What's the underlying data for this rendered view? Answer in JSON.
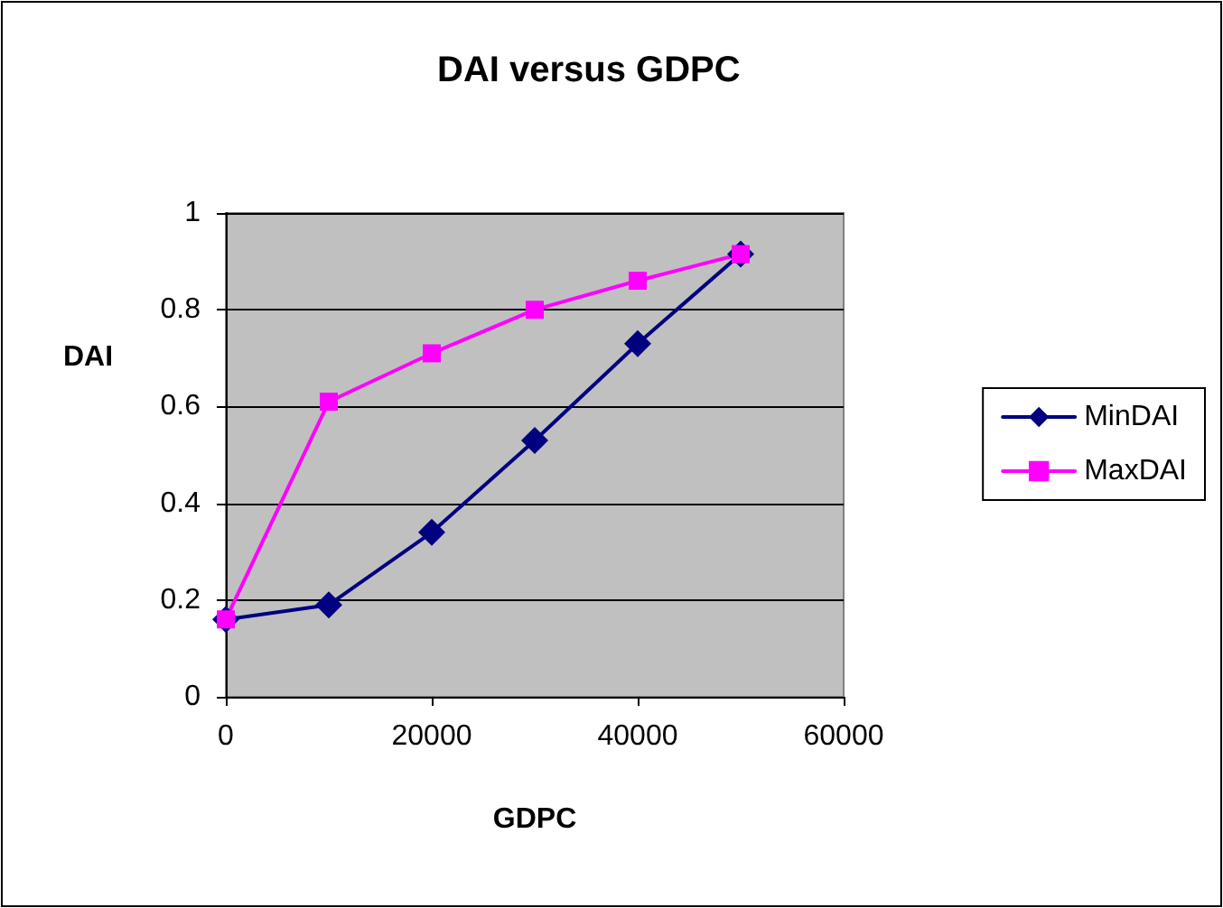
{
  "chart_data": {
    "type": "line",
    "title": "DAI versus GDPC",
    "xlabel": "GDPC",
    "ylabel": "DAI",
    "x": [
      0,
      10000,
      20000,
      30000,
      40000,
      50000
    ],
    "series": [
      {
        "name": "MinDAI",
        "color": "#000080",
        "marker": "diamond",
        "values": [
          0.16,
          0.19,
          0.34,
          0.53,
          0.73,
          0.915
        ]
      },
      {
        "name": "MaxDAI",
        "color": "#ff00ff",
        "marker": "square",
        "values": [
          0.16,
          0.61,
          0.71,
          0.8,
          0.86,
          0.915
        ]
      }
    ],
    "xlim": [
      0,
      60000
    ],
    "xticks": [
      0,
      20000,
      40000,
      60000
    ],
    "ylim": [
      0,
      1
    ],
    "yticks": [
      0,
      0.2,
      0.4,
      0.6,
      0.8,
      1
    ],
    "grid": "y",
    "legend": "right",
    "line_style": "solid"
  }
}
